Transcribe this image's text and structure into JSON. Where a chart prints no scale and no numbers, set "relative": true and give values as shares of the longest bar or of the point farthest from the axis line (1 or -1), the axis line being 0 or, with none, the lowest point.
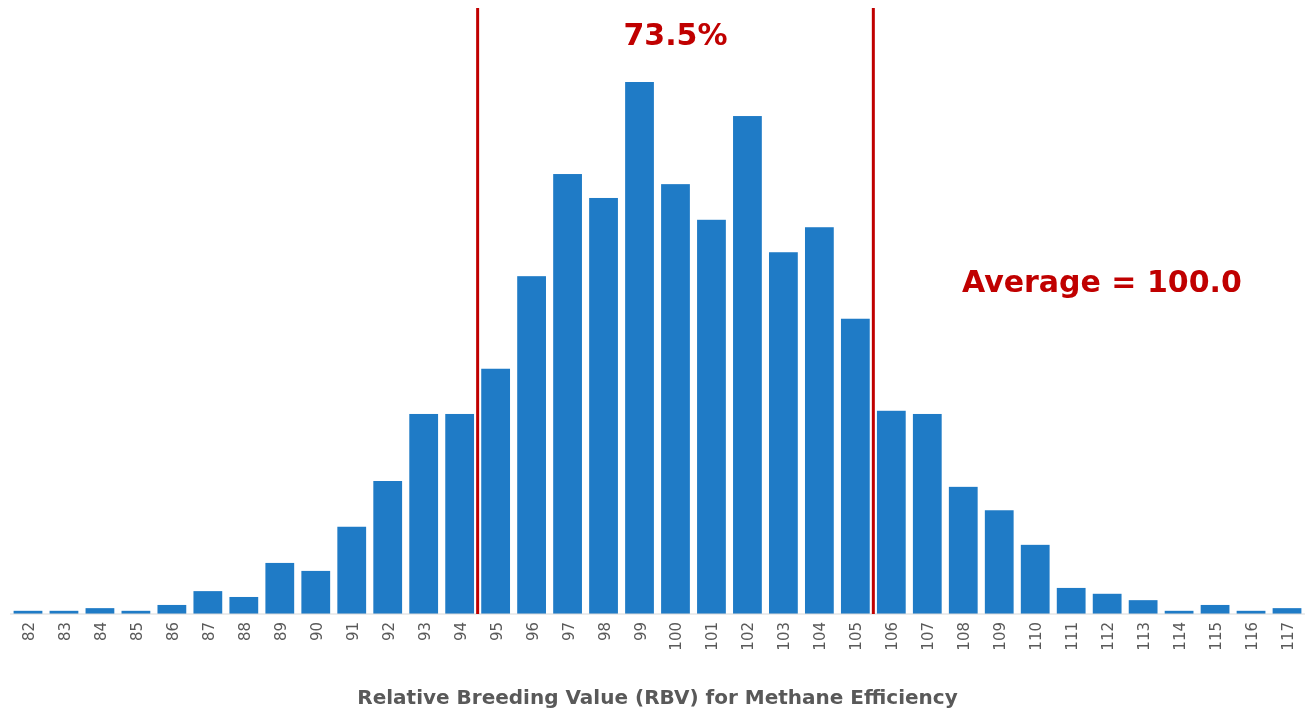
{
  "chart_data": {
    "type": "bar",
    "relative": true,
    "xlabel": "Relative Breeding Value (RBV) for Methane Efficiency",
    "x": [
      82,
      83,
      84,
      85,
      86,
      87,
      88,
      89,
      90,
      91,
      92,
      93,
      94,
      95,
      96,
      97,
      98,
      99,
      100,
      101,
      102,
      103,
      104,
      105,
      106,
      107,
      108,
      109,
      110,
      111,
      112,
      113,
      114,
      115,
      116,
      117
    ],
    "values": [
      0.006,
      0.006,
      0.011,
      0.006,
      0.017,
      0.043,
      0.032,
      0.096,
      0.081,
      0.164,
      0.25,
      0.376,
      0.376,
      0.461,
      0.635,
      0.827,
      0.782,
      1,
      0.808,
      0.741,
      0.936,
      0.68,
      0.727,
      0.555,
      0.382,
      0.376,
      0.239,
      0.195,
      0.13,
      0.049,
      0.038,
      0.026,
      0.006,
      0.017,
      0.006,
      0.011
    ],
    "color": "#1f7bc6",
    "xlim": [
      81.5,
      117.5
    ],
    "xticks": [
      82,
      83,
      84,
      85,
      86,
      87,
      88,
      89,
      90,
      91,
      92,
      93,
      94,
      95,
      96,
      97,
      98,
      99,
      100,
      101,
      102,
      103,
      104,
      105,
      106,
      107,
      108,
      109,
      110,
      111,
      112,
      113,
      114,
      115,
      116,
      117
    ],
    "ref_lines": [
      {
        "axis": "x",
        "value": 94.5,
        "color": "#c00000"
      },
      {
        "axis": "x",
        "value": 105.5,
        "color": "#c00000"
      }
    ],
    "annotations": [
      "73.5%",
      "Average = 100.0"
    ]
  }
}
